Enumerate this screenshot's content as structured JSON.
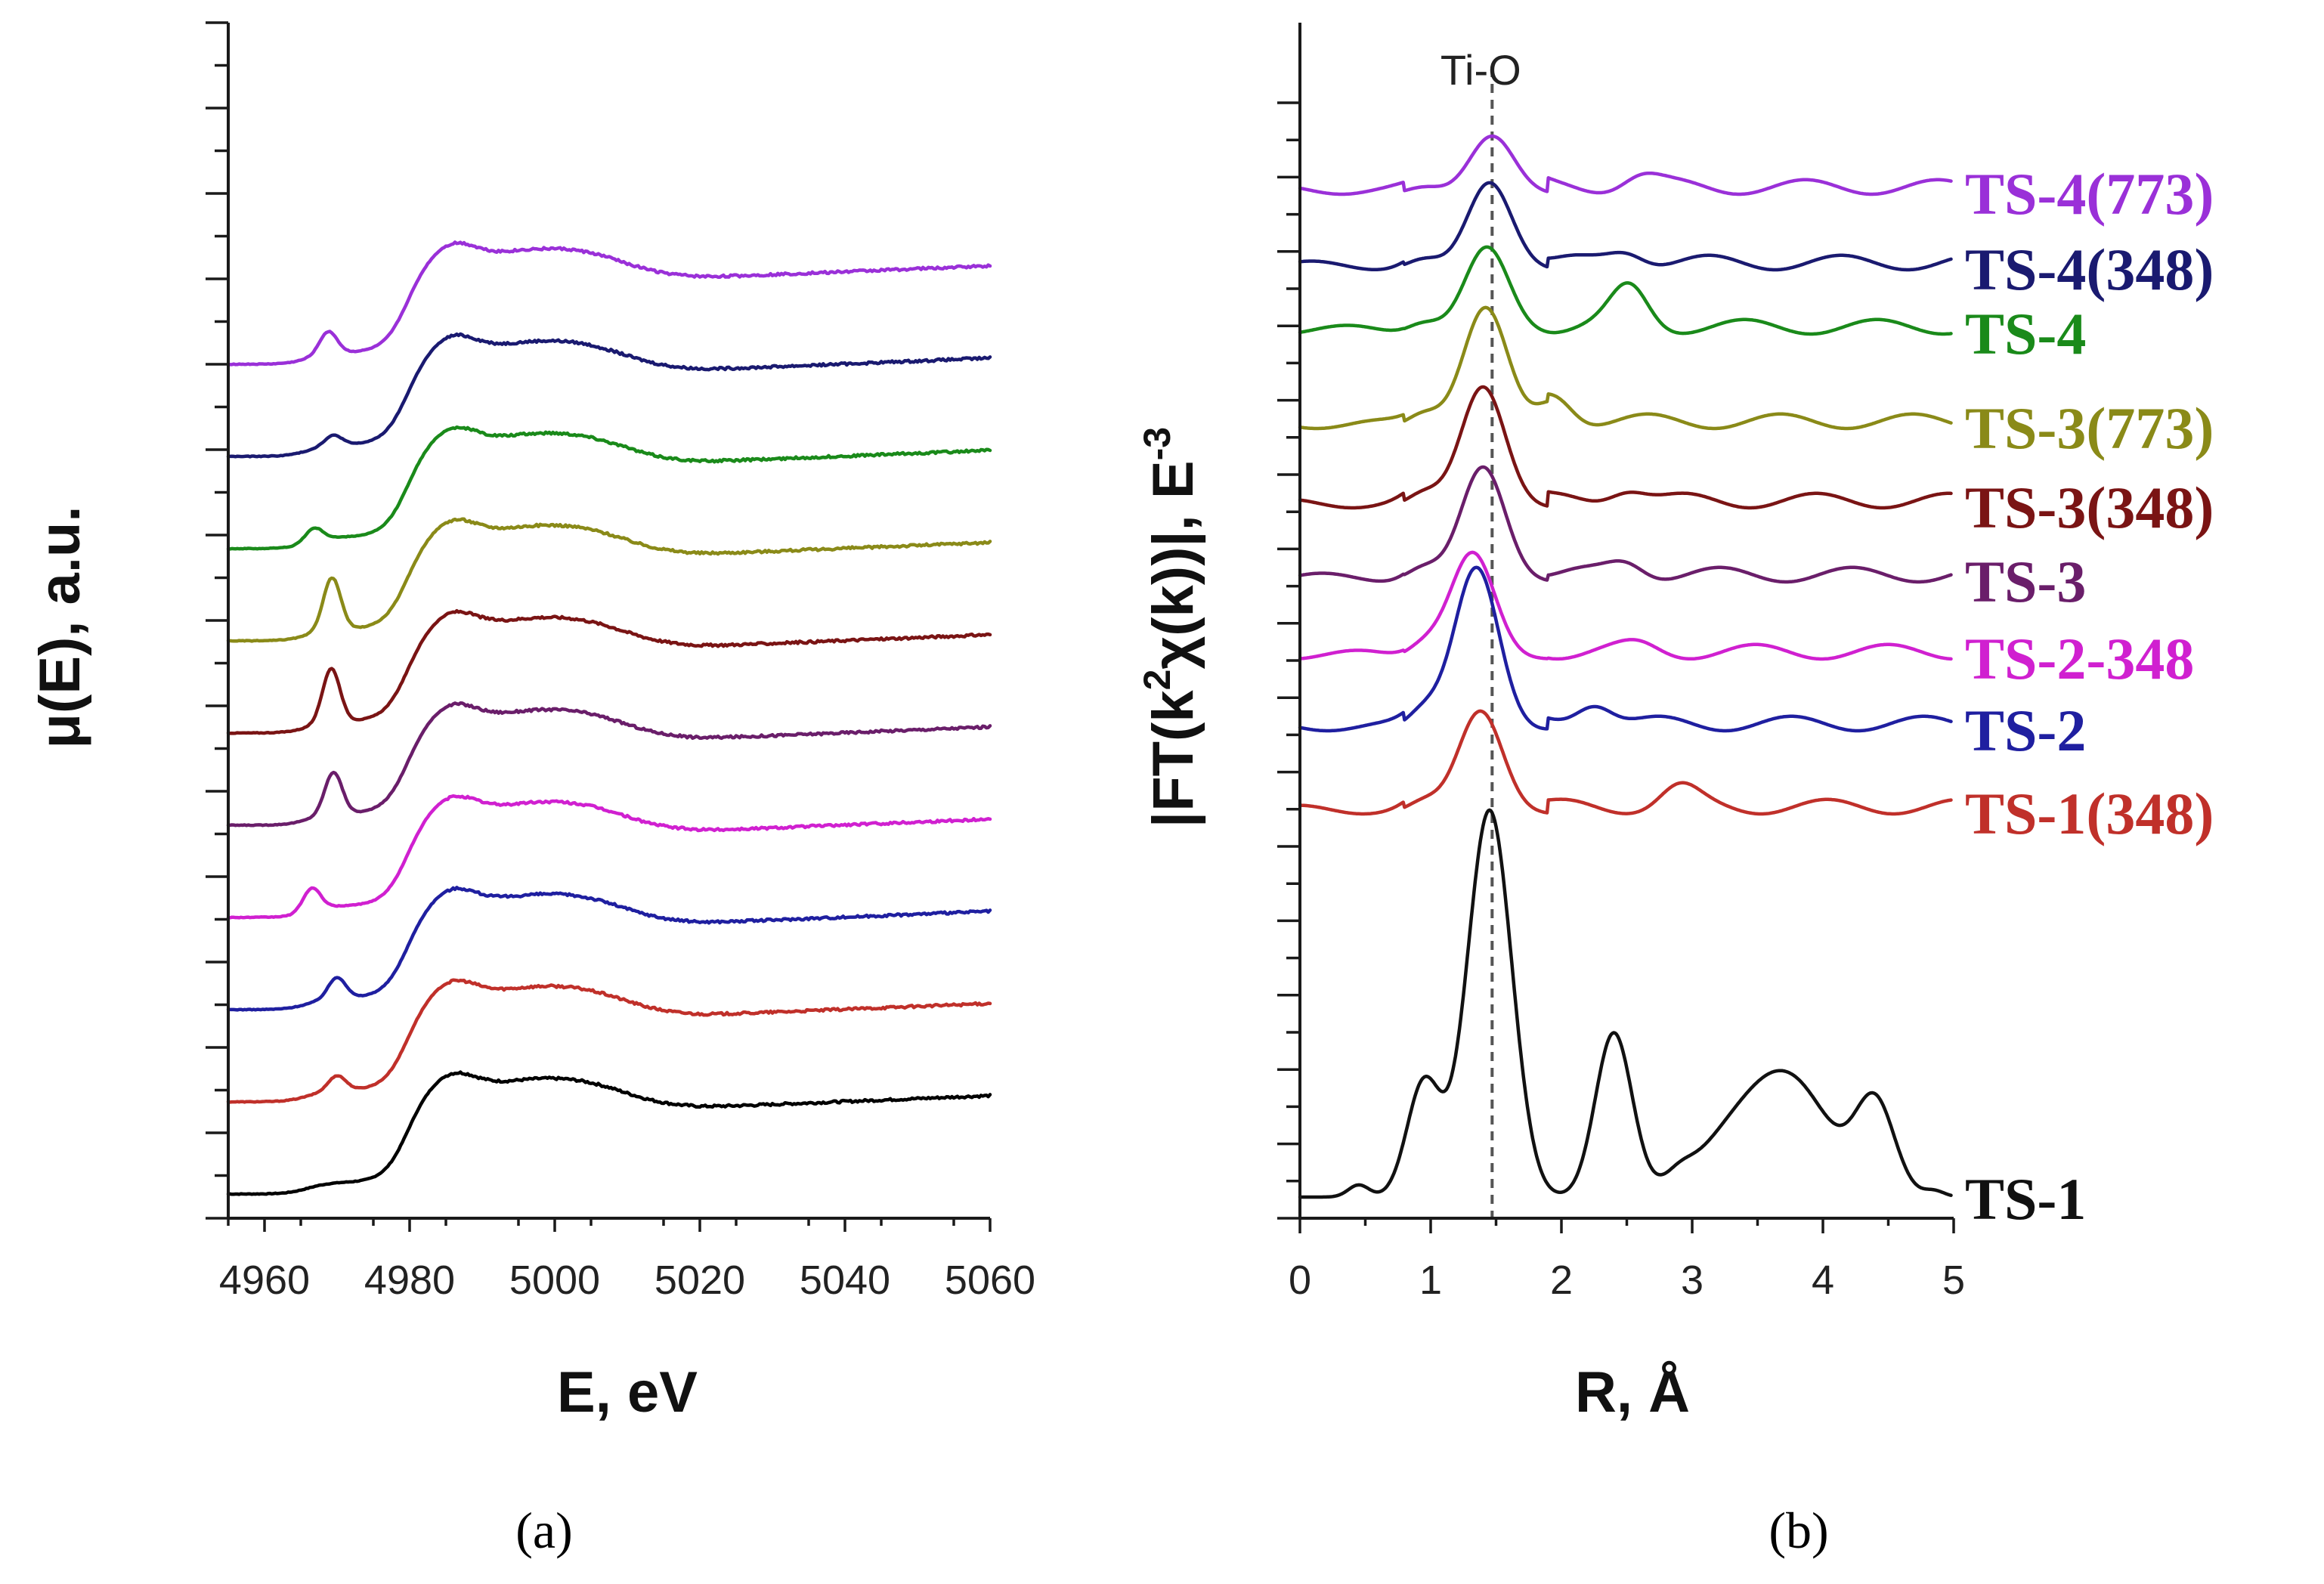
{
  "chart_data": [
    {
      "panel": "(a)",
      "type": "line",
      "xlabel": "E, eV",
      "ylabel": "μ(E), a.u.",
      "xlim": [
        4955,
        5060
      ],
      "xticks": [
        4960,
        4980,
        5000,
        5020,
        5040,
        5060
      ],
      "series": [
        {
          "color": "#000000",
          "offset": 0,
          "pre_peak": null
        },
        {
          "color": "#c0302a",
          "offset": 1,
          "pre_peak": [
            4970,
            0.32
          ]
        },
        {
          "color": "#1f1fa0",
          "offset": 2,
          "pre_peak": [
            4970,
            0.45
          ]
        },
        {
          "color": "#d020d0",
          "offset": 3,
          "pre_peak": [
            4966.5,
            0.48
          ]
        },
        {
          "color": "#6a1e6a",
          "offset": 4,
          "pre_peak": [
            4969.5,
            0.9
          ]
        },
        {
          "color": "#7a1414",
          "offset": 5,
          "pre_peak": [
            4969.2,
            1.15
          ]
        },
        {
          "color": "#8a8a18",
          "offset": 6,
          "pre_peak": [
            4969.3,
            1.12
          ]
        },
        {
          "color": "#1a8a1a",
          "offset": 7,
          "pre_peak": [
            4966.8,
            0.28
          ]
        },
        {
          "color": "#1a1a70",
          "offset": 8,
          "pre_peak": [
            4969.5,
            0.22
          ]
        },
        {
          "color": "#9a30d8",
          "offset": 9,
          "pre_peak": [
            4968.8,
            0.48
          ]
        }
      ]
    },
    {
      "panel": "(b)",
      "type": "line",
      "xlabel": "R, Å",
      "ylabel_main": "|FT(k",
      "ylabel_sup": "2",
      "ylabel_mid": "χ(k))|, E",
      "ylabel_sup2": "-3",
      "xlim": [
        0,
        5
      ],
      "xticks": [
        0,
        1,
        2,
        3,
        4,
        5
      ],
      "reference_line": {
        "label": "Ti-O",
        "x": 1.47
      },
      "series": [
        {
          "name": "TS-1",
          "color": "#111111",
          "peak": [
            1.45,
            3.2
          ],
          "second": [
            2.4,
            1.35
          ]
        },
        {
          "name": "TS-1(348)",
          "color": "#c0302a",
          "peak": [
            1.38,
            0.85
          ],
          "second": [
            2.9,
            0.15
          ]
        },
        {
          "name": "TS-2",
          "color": "#1f1fa0",
          "peak": [
            1.35,
            1.35
          ],
          "second": [
            2.25,
            0.2
          ]
        },
        {
          "name": "TS-2-348",
          "color": "#d020d0",
          "peak": [
            1.32,
            0.88
          ],
          "second": [
            2.6,
            0.05
          ]
        },
        {
          "name": "TS-3",
          "color": "#6a1e6a",
          "peak": [
            1.4,
            0.95
          ],
          "second": [
            2.5,
            0.12
          ]
        },
        {
          "name": "TS-3(348)",
          "color": "#7a1414",
          "peak": [
            1.4,
            1.0
          ],
          "second": [
            2.5,
            0.12
          ]
        },
        {
          "name": "TS-3(773)",
          "color": "#8a8a18",
          "peak": [
            1.42,
            1.0
          ],
          "second": [
            1.95,
            0.22
          ]
        },
        {
          "name": "TS-4",
          "color": "#1a8a1a",
          "peak": [
            1.43,
            0.72
          ],
          "second": [
            2.52,
            0.32
          ]
        },
        {
          "name": "TS-4(348)",
          "color": "#1a1a70",
          "peak": [
            1.45,
            0.72
          ],
          "second": [
            2.5,
            0.12
          ]
        },
        {
          "name": "TS-4(773)",
          "color": "#9a30d8",
          "peak": [
            1.47,
            0.48
          ],
          "second": [
            2.6,
            0.1
          ]
        }
      ]
    }
  ],
  "labels": {
    "panel_a": "(a)",
    "panel_b": "(b)"
  }
}
